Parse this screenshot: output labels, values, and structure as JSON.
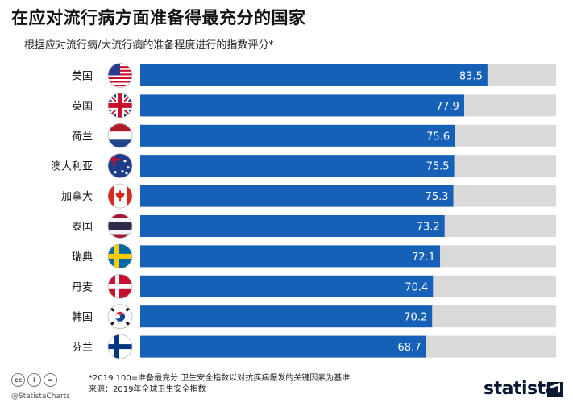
{
  "chart_data": {
    "type": "bar",
    "orientation": "horizontal",
    "title": "在应对流行病方面准备得最充分的国家",
    "subtitle": "根据应对流行病/大流行病的准备程度进行的指数评分*",
    "categories": [
      "美国",
      "英国",
      "荷兰",
      "澳大利亚",
      "加拿大",
      "泰国",
      "瑞典",
      "丹麦",
      "韩国",
      "芬兰"
    ],
    "values": [
      83.5,
      77.9,
      75.6,
      75.5,
      75.3,
      73.2,
      72.1,
      70.4,
      70.2,
      68.7
    ],
    "value_labels": [
      "83.5",
      "77.9",
      "75.6",
      "75.5",
      "75.3",
      "73.2",
      "72.1",
      "70.4",
      "70.2",
      "68.7"
    ],
    "xlim": [
      0,
      100
    ],
    "bar_color": "#1660b8",
    "track_color": "#d9d9d9",
    "flag_icons": [
      "us-flag-icon",
      "uk-flag-icon",
      "netherlands-flag-icon",
      "australia-flag-icon",
      "canada-flag-icon",
      "thailand-flag-icon",
      "sweden-flag-icon",
      "denmark-flag-icon",
      "south-korea-flag-icon",
      "finland-flag-icon"
    ]
  },
  "footer": {
    "note": "*2019 100=准备最充分 卫生安全指数以对抗疾病爆发的关键因素为基准",
    "source": "来源：2019年全球卫生安全指数",
    "handle": "@StatistaCharts",
    "brand": "statista"
  }
}
